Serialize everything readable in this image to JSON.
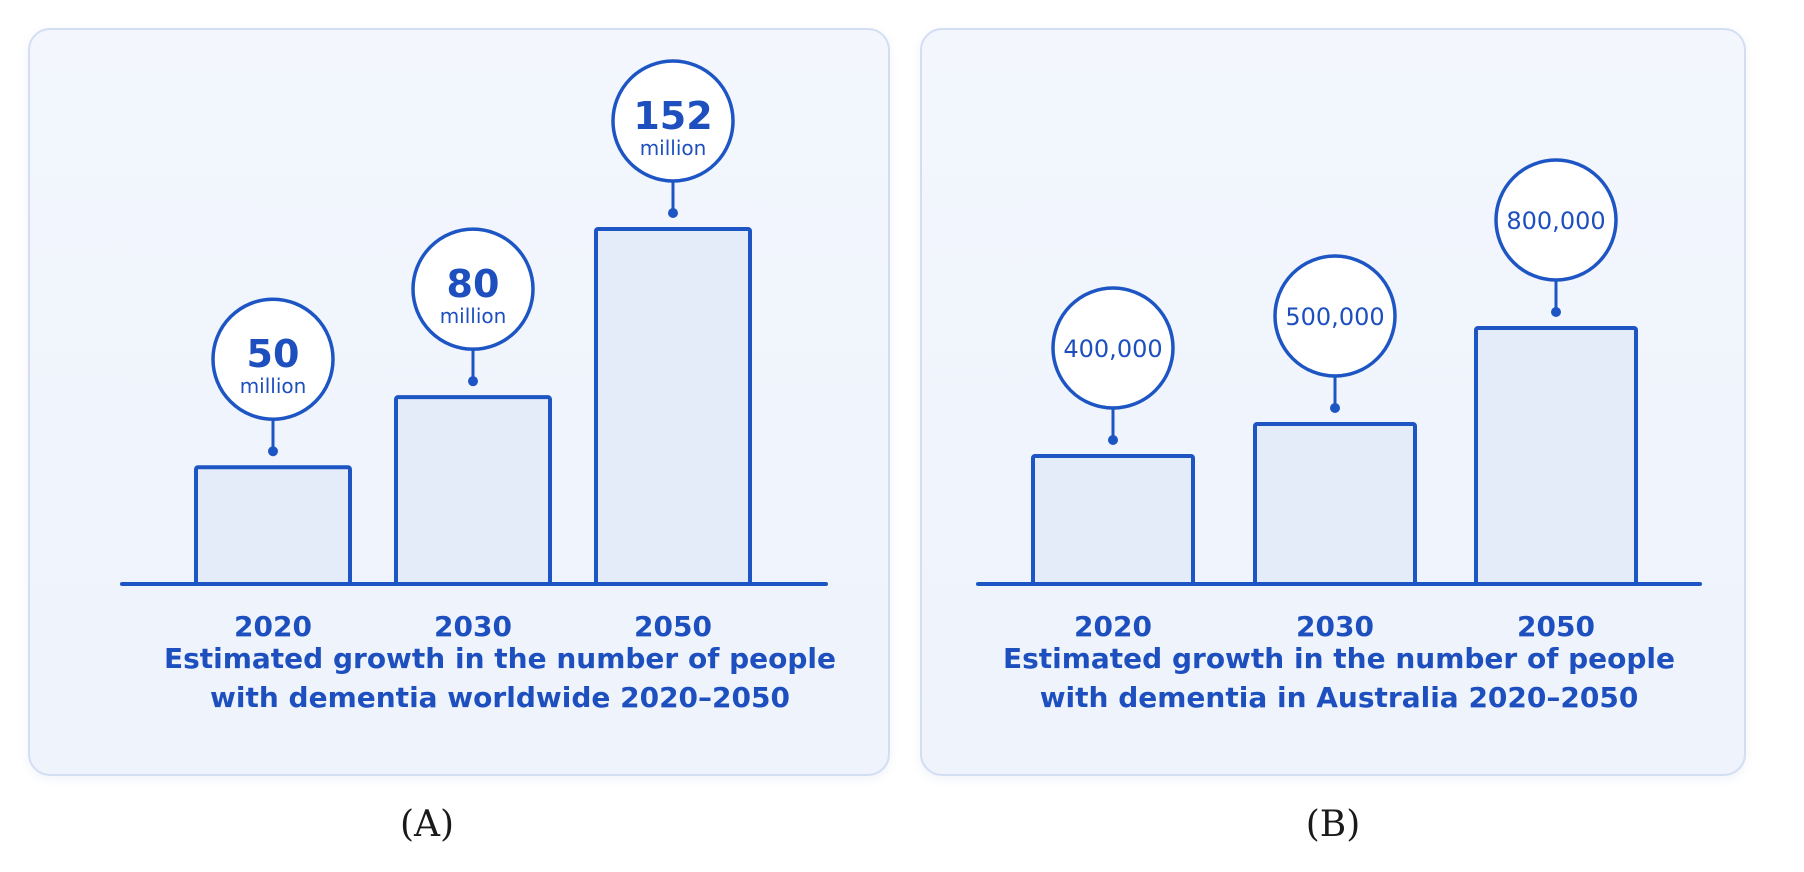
{
  "chart_data": [
    {
      "type": "bar",
      "panel_label": "(A)",
      "title_lines": [
        "Estimated growth in the number of people",
        "with dementia worldwide 2020–2050"
      ],
      "categories": [
        "2020",
        "2030",
        "2050"
      ],
      "values": [
        50,
        80,
        152
      ],
      "units": "million",
      "value_labels": [
        {
          "number": "50",
          "unit": "million"
        },
        {
          "number": "80",
          "unit": "million"
        },
        {
          "number": "152",
          "unit": "million"
        }
      ],
      "colors": {
        "bar_fill": "#e4ecfa",
        "bar_stroke": "#1d56c4",
        "text": "#1d4fbf"
      }
    },
    {
      "type": "bar",
      "panel_label": "(B)",
      "title_lines": [
        "Estimated growth in the number of people",
        "with dementia in Australia 2020–2050"
      ],
      "categories": [
        "2020",
        "2030",
        "2050"
      ],
      "values": [
        400000,
        500000,
        800000
      ],
      "value_labels": [
        {
          "number": "400,000"
        },
        {
          "number": "500,000"
        },
        {
          "number": "800,000"
        }
      ],
      "colors": {
        "bar_fill": "#e4ecfa",
        "bar_stroke": "#1d56c4",
        "text": "#1d4fbf"
      }
    }
  ]
}
